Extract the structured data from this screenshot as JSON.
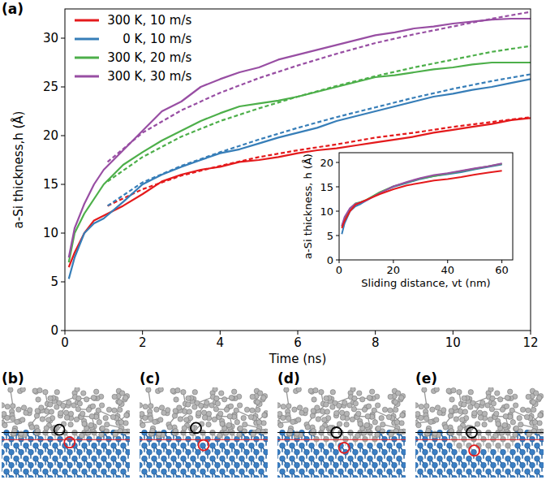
{
  "chart_data": [
    {
      "type": "line",
      "label": "(a)",
      "x_label": "Time (ns)",
      "y_label": "a-Si thickness,h (Å)",
      "xlim": [
        0,
        12
      ],
      "ylim": [
        0,
        33
      ],
      "xticks": [
        0,
        2,
        4,
        6,
        8,
        10,
        12
      ],
      "yticks": [
        0,
        5,
        10,
        15,
        20,
        25,
        30
      ],
      "legend": "upper left",
      "series": [
        {
          "name": "300 K, 10 m/s",
          "color": "#e41a1c",
          "line_style": "solid",
          "x": [
            0.1,
            0.25,
            0.5,
            0.75,
            1,
            1.5,
            2,
            2.5,
            3,
            3.5,
            4,
            4.5,
            5,
            5.5,
            6,
            6.5,
            7,
            7.5,
            8,
            8.5,
            9,
            9.5,
            10,
            10.5,
            11,
            11.5,
            12
          ],
          "values": [
            6.5,
            8,
            10,
            11.3,
            11.8,
            12.8,
            14,
            15.3,
            16,
            16.5,
            16.8,
            17.3,
            17.5,
            17.8,
            18.2,
            18.5,
            18.7,
            19,
            19.3,
            19.6,
            19.9,
            20.3,
            20.6,
            20.9,
            21.2,
            21.6,
            21.8
          ]
        },
        {
          "name": "0 K, 10 m/s",
          "color": "#377eb8",
          "line_style": "solid",
          "x": [
            0.1,
            0.25,
            0.5,
            0.75,
            1,
            1.5,
            2,
            2.5,
            3,
            3.5,
            4,
            4.5,
            5,
            5.5,
            6,
            6.5,
            7,
            7.5,
            8,
            8.5,
            9,
            9.5,
            10,
            10.5,
            11,
            11.5,
            12
          ],
          "values": [
            5.3,
            7.5,
            10,
            11,
            11.5,
            13.2,
            15,
            16,
            16.8,
            17.5,
            18.2,
            18.6,
            19.2,
            19.8,
            20.3,
            20.8,
            21.5,
            22,
            22.5,
            23,
            23.5,
            24,
            24.3,
            24.7,
            25,
            25.4,
            25.8
          ]
        },
        {
          "name": "300 K, 20 m/s",
          "color": "#4daf4a",
          "line_style": "solid",
          "x": [
            0.1,
            0.25,
            0.5,
            0.75,
            1,
            1.5,
            2,
            2.5,
            3,
            3.5,
            4,
            4.5,
            5,
            5.5,
            6,
            6.5,
            7,
            7.5,
            8,
            8.5,
            9,
            9.5,
            10,
            10.5,
            11,
            11.5,
            12
          ],
          "values": [
            7,
            10,
            12,
            13.5,
            15,
            17,
            18.3,
            19.5,
            20.5,
            21.5,
            22.3,
            23,
            23.3,
            23.6,
            24,
            24.5,
            25,
            25.5,
            26,
            26.2,
            26.5,
            26.8,
            27,
            27.3,
            27.5,
            27.5,
            27.5
          ]
        },
        {
          "name": "300 K, 30 m/s",
          "color": "#984ea3",
          "line_style": "solid",
          "x": [
            0.1,
            0.25,
            0.5,
            0.75,
            1,
            1.5,
            2,
            2.5,
            3,
            3.5,
            4,
            4.5,
            5,
            5.5,
            6,
            6.5,
            7,
            7.5,
            8,
            8.5,
            9,
            9.5,
            10,
            10.5,
            11,
            11.5,
            12
          ],
          "values": [
            7.5,
            10.5,
            13,
            15,
            16.5,
            18.5,
            20.5,
            22.5,
            23.5,
            25,
            25.8,
            26.5,
            27,
            27.8,
            28.3,
            28.8,
            29.3,
            29.8,
            30.3,
            30.6,
            31,
            31.2,
            31.5,
            31.7,
            31.9,
            32,
            32
          ]
        },
        {
          "color": "#e41a1c",
          "line_style": "dashed",
          "x": [
            1.1,
            2,
            3,
            4,
            5,
            6,
            7,
            8,
            9,
            10,
            11,
            12
          ],
          "values": [
            12.8,
            14.5,
            15.9,
            16.9,
            17.8,
            18.5,
            19.1,
            19.8,
            20.3,
            20.9,
            21.4,
            21.9
          ]
        },
        {
          "color": "#377eb8",
          "line_style": "dashed",
          "x": [
            1.1,
            2,
            3,
            4,
            5,
            6,
            7,
            8,
            9,
            10,
            11,
            12
          ],
          "values": [
            12.8,
            15.2,
            16.9,
            18.3,
            19.6,
            20.8,
            21.9,
            22.9,
            23.9,
            24.8,
            25.6,
            26.3
          ]
        },
        {
          "color": "#4daf4a",
          "line_style": "dashed",
          "x": [
            1.1,
            2,
            3,
            4,
            5,
            6,
            7,
            8,
            9,
            10,
            11,
            12
          ],
          "values": [
            15.3,
            17.8,
            19.9,
            21.5,
            22.8,
            24,
            25.1,
            26.1,
            27,
            27.8,
            28.6,
            29.2
          ]
        },
        {
          "color": "#984ea3",
          "line_style": "dashed",
          "x": [
            1.1,
            2,
            3,
            4,
            5,
            6,
            7,
            8,
            9,
            10,
            11,
            12
          ],
          "values": [
            17.3,
            20.3,
            22.6,
            24.4,
            25.9,
            27.2,
            28.4,
            29.5,
            30.4,
            31.2,
            32,
            32.7
          ]
        }
      ]
    },
    {
      "type": "line",
      "x_label": "Sliding distance, vt (nm)",
      "y_label": "a-Si thickness, h (Å)",
      "xlim": [
        0,
        64
      ],
      "ylim": [
        0,
        22
      ],
      "xticks": [
        0,
        20,
        40,
        60
      ],
      "yticks": [
        0,
        5,
        10,
        15,
        20
      ],
      "series": [
        {
          "color": "#377eb8",
          "line_style": "solid",
          "x": [
            1,
            2,
            4,
            6,
            8,
            10,
            15,
            20,
            25,
            30,
            35,
            40,
            45,
            50,
            55,
            60
          ],
          "values": [
            5.3,
            7.5,
            10,
            11,
            11.5,
            12.2,
            13.8,
            15,
            15.8,
            16.6,
            17.2,
            17.6,
            18,
            18.6,
            19.1,
            19.6
          ]
        },
        {
          "color": "#4daf4a",
          "line_style": "solid",
          "x": [
            1,
            2,
            4,
            6,
            8,
            10,
            15,
            20,
            25,
            30,
            35,
            40,
            45,
            50,
            55,
            60
          ],
          "values": [
            6.8,
            8.4,
            10.5,
            11.6,
            11.9,
            12.3,
            13.9,
            15.1,
            15.9,
            16.7,
            17.2,
            17.7,
            18.2,
            18.7,
            19.2,
            19.7
          ]
        },
        {
          "color": "#984ea3",
          "line_style": "solid",
          "x": [
            1,
            2,
            4,
            6,
            8,
            10,
            15,
            20,
            25,
            30,
            35,
            40,
            45,
            50,
            55,
            60
          ],
          "values": [
            7,
            8.8,
            10.6,
            11.5,
            11.8,
            12.2,
            13.7,
            15.1,
            16,
            16.8,
            17.4,
            17.8,
            18.3,
            18.8,
            19.2,
            19.8
          ]
        },
        {
          "color": "#e41a1c",
          "line_style": "solid",
          "x": [
            1,
            2,
            4,
            6,
            8,
            10,
            15,
            20,
            25,
            30,
            35,
            40,
            45,
            50,
            55,
            60
          ],
          "values": [
            6.5,
            8,
            10,
            11.3,
            11.8,
            12.3,
            13.5,
            14.5,
            15.3,
            15.8,
            16.3,
            16.6,
            17,
            17.5,
            17.9,
            18.3
          ]
        }
      ]
    }
  ],
  "panels": [
    {
      "label": "(b)"
    },
    {
      "label": "(c)"
    },
    {
      "label": "(d)"
    },
    {
      "label": "(e)"
    }
  ]
}
